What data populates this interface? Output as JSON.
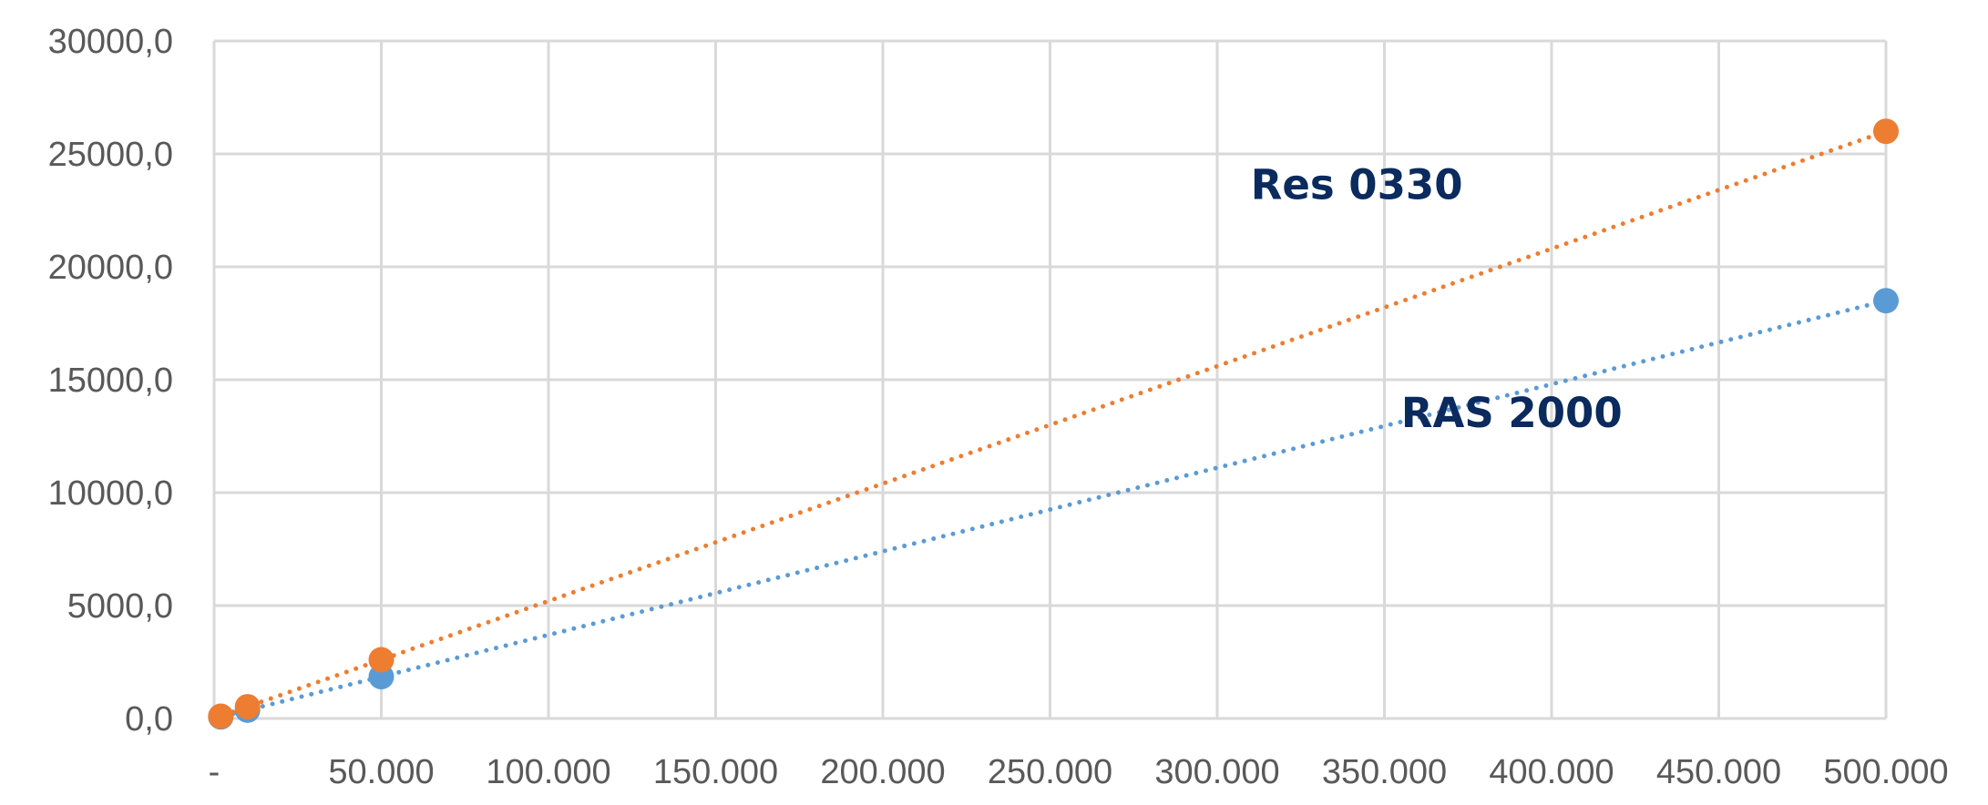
{
  "chart_data": {
    "type": "scatter",
    "title": "",
    "xlabel": "",
    "ylabel": "",
    "xlim": [
      0,
      500000
    ],
    "ylim": [
      0,
      30000
    ],
    "x_ticks": [
      {
        "value": 0,
        "label": "-"
      },
      {
        "value": 50000,
        "label": "50.000"
      },
      {
        "value": 100000,
        "label": "100.000"
      },
      {
        "value": 150000,
        "label": "150.000"
      },
      {
        "value": 200000,
        "label": "200.000"
      },
      {
        "value": 250000,
        "label": "250.000"
      },
      {
        "value": 300000,
        "label": "300.000"
      },
      {
        "value": 350000,
        "label": "350.000"
      },
      {
        "value": 400000,
        "label": "400.000"
      },
      {
        "value": 450000,
        "label": "450.000"
      },
      {
        "value": 500000,
        "label": "500.000"
      }
    ],
    "y_ticks": [
      {
        "value": 0,
        "label": "0,0"
      },
      {
        "value": 5000,
        "label": "5000,0"
      },
      {
        "value": 10000,
        "label": "10000,0"
      },
      {
        "value": 15000,
        "label": "15000,0"
      },
      {
        "value": 20000,
        "label": "20000,0"
      },
      {
        "value": 25000,
        "label": "25000,0"
      },
      {
        "value": 30000,
        "label": "30000,0"
      }
    ],
    "grid": true,
    "legend": "none",
    "series": [
      {
        "name": "RAS 2000",
        "color": "#5b9bd5",
        "points": [
          {
            "x": 2000,
            "y": 70
          },
          {
            "x": 10000,
            "y": 370
          },
          {
            "x": 50000,
            "y": 1850
          },
          {
            "x": 500000,
            "y": 18500
          }
        ],
        "trendline": {
          "style": "dotted",
          "from": [
            0,
            0
          ],
          "to": [
            500000,
            18500
          ]
        }
      },
      {
        "name": "Res 0330",
        "color": "#ed7d31",
        "points": [
          {
            "x": 2000,
            "y": 100
          },
          {
            "x": 10000,
            "y": 520
          },
          {
            "x": 50000,
            "y": 2600
          },
          {
            "x": 500000,
            "y": 26000
          }
        ],
        "trendline": {
          "style": "dotted",
          "from": [
            0,
            0
          ],
          "to": [
            500000,
            26000
          ]
        }
      }
    ],
    "annotations": [
      {
        "text": "Res 0330",
        "series": "Res 0330",
        "x": 310000,
        "y": 23000
      },
      {
        "text": "RAS 2000",
        "series": "RAS 2000",
        "x": 355000,
        "y": 12900
      }
    ]
  }
}
